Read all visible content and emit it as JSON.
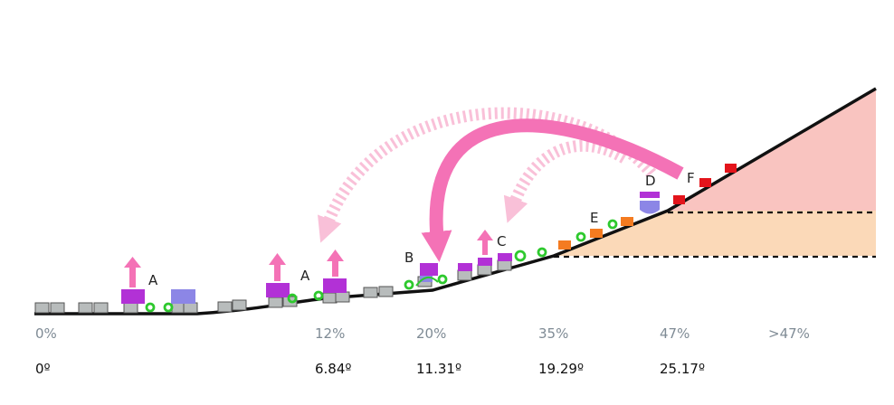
{
  "colors": {
    "slope_line": "#111111",
    "steep_fill": "#f9c4c0",
    "moderate_fill": "#fbd9b8",
    "arrow_pink": "#f472b6",
    "arrow_pink_light": "#f9c0d8",
    "block_gray": "#b8bcbc",
    "block_purple": "#b231d6",
    "block_blue": "#8c86e6",
    "block_orange": "#f47b20",
    "block_red": "#e3141b",
    "bubble_green": "#2ec92e"
  },
  "point_labels": [
    "A",
    "A",
    "B",
    "C",
    "D",
    "E",
    "F"
  ],
  "slope_percentages": [
    "0%",
    "12%",
    "20%",
    "35%",
    "47%",
    ">47%"
  ],
  "slope_angles": [
    "0º",
    "6.84º",
    "11.31º",
    "19.29º",
    "25.17º"
  ]
}
